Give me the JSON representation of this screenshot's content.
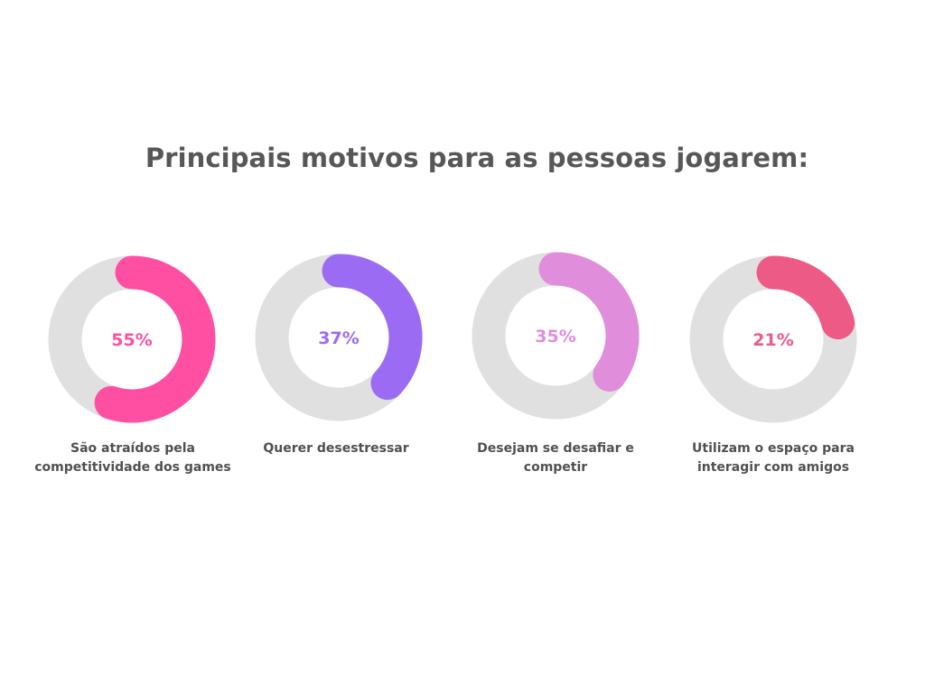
{
  "title": "Principais motivos para as pessoas jogarem:",
  "chart_data": [
    {
      "type": "pie",
      "values": [
        55
      ],
      "value_label": "55%",
      "caption": "São atraídos pela competitividade dos games",
      "color": "#FF4FA3",
      "track_color": "#E0E0E0"
    },
    {
      "type": "pie",
      "values": [
        37
      ],
      "value_label": "37%",
      "caption": "Querer desestressar",
      "color": "#9B6CF3",
      "track_color": "#E0E0E0"
    },
    {
      "type": "pie",
      "values": [
        35
      ],
      "value_label": "35%",
      "caption": "Desejam se desafiar e competir",
      "color": "#E08DDB",
      "track_color": "#E0E0E0"
    },
    {
      "type": "pie",
      "values": [
        21
      ],
      "value_label": "21%",
      "caption": "Utilizam o espaço para interagir com amigos",
      "color": "#EE5A86",
      "track_color": "#E0E0E0"
    }
  ]
}
